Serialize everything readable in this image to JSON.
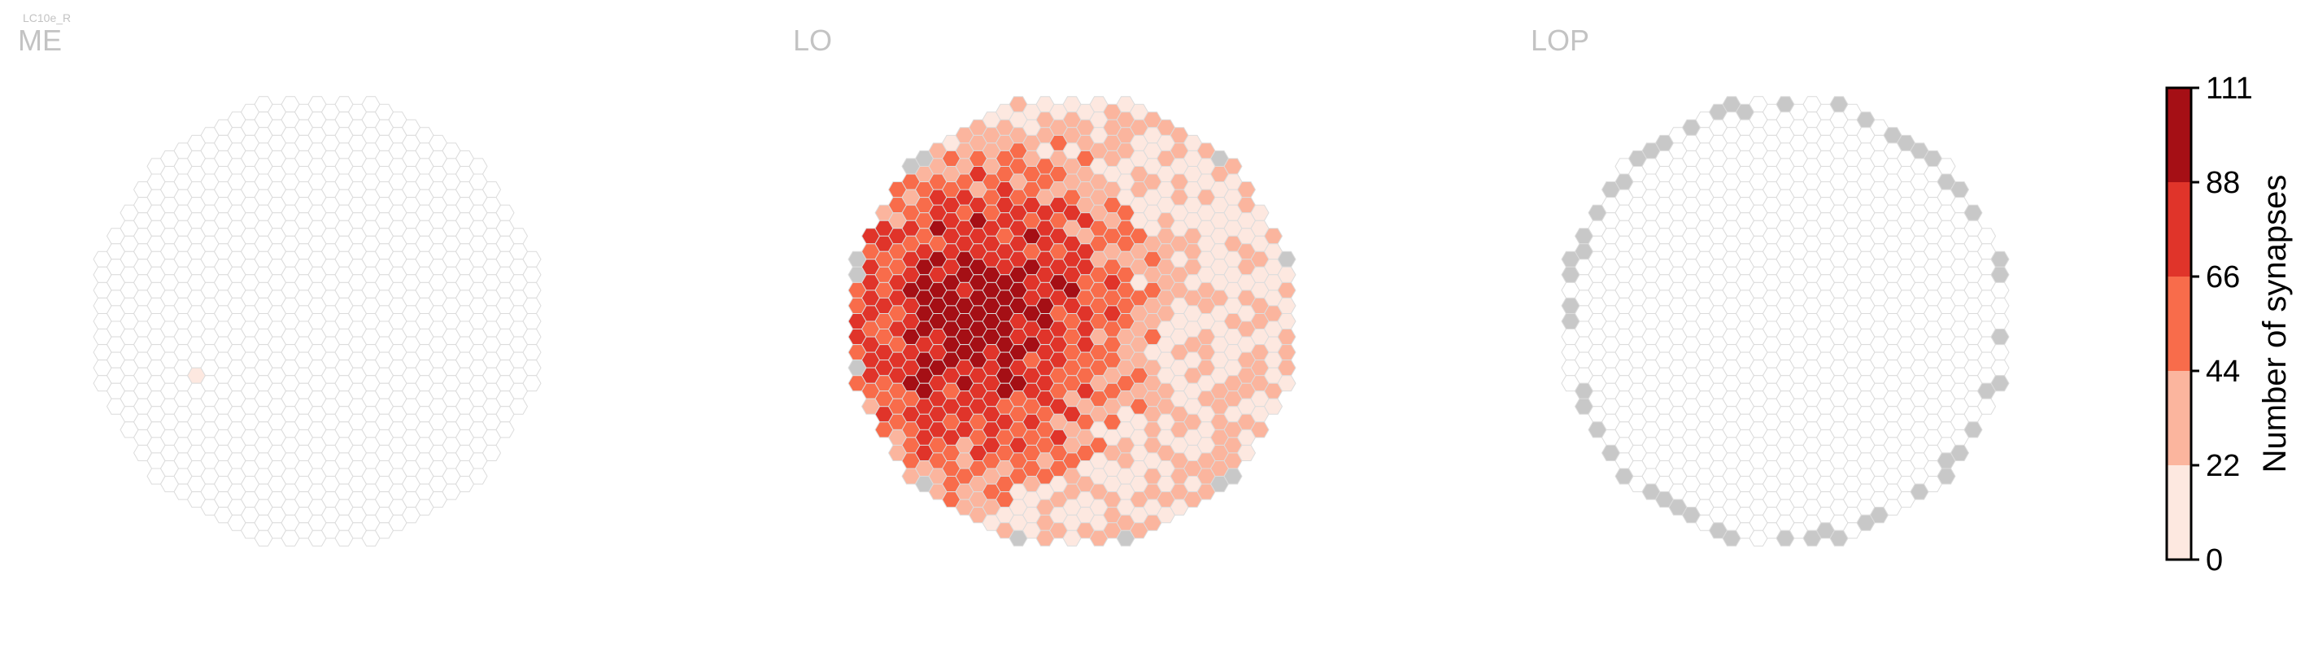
{
  "figure": {
    "super_label": "LC10e_R"
  },
  "colors": {
    "hex_edge": "#dcdcdc",
    "hex_empty": "#ffffff",
    "hex_missing": "#c8c8c8",
    "panel_label": "#c3c3c3",
    "scale": [
      "#fde8e0",
      "#fbb59e",
      "#f86c4b",
      "#e0342a",
      "#a50f15"
    ]
  },
  "chart_data": [
    {
      "type": "heatmap",
      "title": "ME",
      "description_visible": "hexagonal eye map, almost all columns empty; one column with a low count",
      "values": [
        {
          "q": -9,
          "r": 8,
          "synapses": 5
        }
      ],
      "missing_columns": []
    },
    {
      "type": "heatmap",
      "title": "LO",
      "values_pattern": "hot spots of 44–111 synapses in central-left region; 0–22 across most of the rest",
      "missing_columns": [
        [
          -10,
          -1
        ],
        [
          -13,
          9
        ],
        [
          -15,
          14
        ],
        [
          4,
          -14
        ],
        [
          5,
          -14
        ],
        [
          -14,
          20
        ],
        [
          18,
          -9
        ],
        [
          18,
          5
        ],
        [
          17,
          7
        ],
        [
          12,
          16
        ],
        [
          8,
          20
        ],
        [
          2,
          24
        ],
        [
          0,
          24
        ],
        [
          -2,
          24
        ],
        [
          -5,
          22
        ]
      ]
    },
    {
      "type": "heatmap",
      "title": "LOP",
      "values_pattern": "no synapses; boundary columns greyed out",
      "missing_columns": "rim"
    },
    {
      "type": "colorbar",
      "label": "Number of synapses",
      "ticks": [
        "0",
        "22",
        "44",
        "66",
        "88",
        "111"
      ],
      "range": [
        0,
        111
      ],
      "bins": 5
    }
  ]
}
